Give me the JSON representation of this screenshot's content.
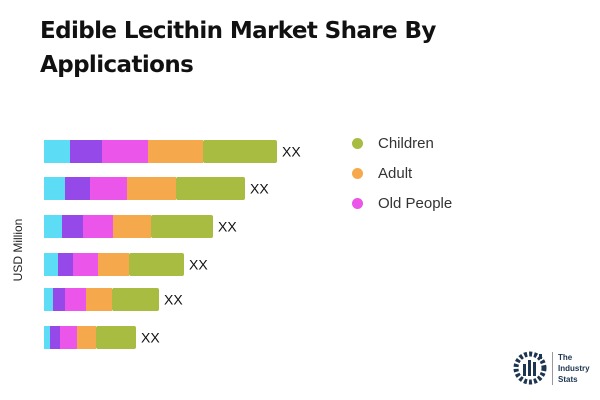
{
  "chart_data": {
    "type": "bar",
    "orientation": "horizontal",
    "stacked": true,
    "title": "Edible Lecithin Market Share By Applications",
    "ylabel": "USD Million",
    "categories": [
      "",
      "",
      "",
      "",
      "",
      ""
    ],
    "data_labels": [
      "XX",
      "XX",
      "XX",
      "XX",
      "XX",
      "XX"
    ],
    "series": [
      {
        "color": "#5ddcf5",
        "values": [
          26,
          21,
          18,
          14,
          9,
          6
        ]
      },
      {
        "color": "#9549e8",
        "values": [
          32,
          25,
          21,
          15,
          12,
          10
        ]
      },
      {
        "name": "Old People",
        "color": "#eb55ea",
        "values": [
          46,
          37,
          30,
          25,
          21,
          17
        ]
      },
      {
        "name": "Adult",
        "color": "#f5a94c",
        "values": [
          55,
          49,
          38,
          31,
          26,
          19
        ]
      },
      {
        "name": "Children",
        "color": "#a7bc41",
        "values": [
          74,
          69,
          62,
          55,
          47,
          40
        ]
      }
    ],
    "grid": false,
    "legend_position": "right"
  },
  "legend": [
    {
      "label": "Children",
      "color": "#a7bc41"
    },
    {
      "label": "Adult",
      "color": "#f5a94c"
    },
    {
      "label": "Old People",
      "color": "#eb55ea"
    }
  ],
  "logo": {
    "line1": "The",
    "line2": "Industry",
    "line3": "Stats"
  }
}
